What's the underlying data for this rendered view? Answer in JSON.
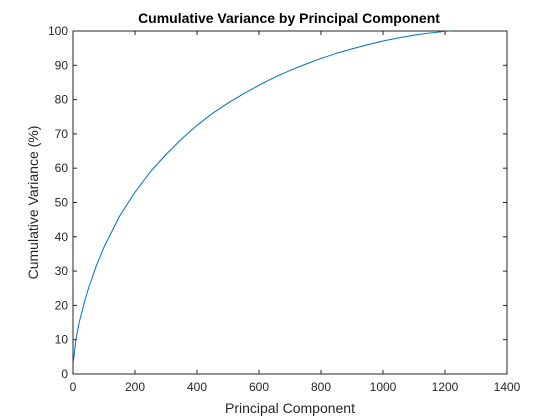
{
  "chart_data": {
    "type": "line",
    "title": "Cumulative Variance by Principal Component",
    "xlabel": "Principal Component",
    "ylabel": "Cumulative Variance (%)",
    "xlim": [
      0,
      1400
    ],
    "ylim": [
      0,
      100
    ],
    "xticks": [
      "0",
      "200",
      "400",
      "600",
      "800",
      "1000",
      "1200",
      "1400"
    ],
    "yticks": [
      "0",
      "10",
      "20",
      "30",
      "40",
      "50",
      "60",
      "70",
      "80",
      "90",
      "100"
    ],
    "grid": false,
    "legend": "none",
    "series": [
      {
        "color": "#0072BD",
        "x": [
          1,
          10,
          20,
          30,
          40,
          50,
          75,
          100,
          150,
          200,
          250,
          300,
          350,
          400,
          450,
          500,
          550,
          600,
          650,
          700,
          750,
          800,
          850,
          900,
          950,
          1000,
          1050,
          1100,
          1150,
          1200,
          1220
        ],
        "y": [
          3.5,
          10.5,
          15,
          18.5,
          22,
          25,
          31.5,
          37,
          46,
          53,
          59,
          64,
          68.5,
          72.5,
          76,
          79,
          81.7,
          84.2,
          86.5,
          88.5,
          90.3,
          92,
          93.5,
          94.8,
          96,
          97.1,
          98,
          98.8,
          99.4,
          99.9,
          100
        ]
      }
    ]
  }
}
